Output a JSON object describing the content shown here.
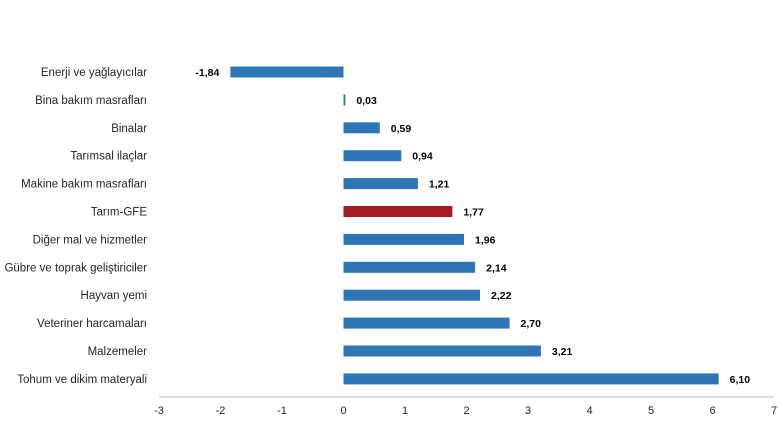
{
  "chart_data": {
    "type": "bar",
    "orientation": "horizontal",
    "categories": [
      "Enerji  ve yağlayıcılar",
      "Bina bakım masrafları",
      "Binalar",
      "Tarımsal ilaçlar",
      "Makine bakım masrafları",
      "Tarım-GFE",
      "Diğer mal ve hizmetler",
      "Gübre ve toprak geliştiriciler",
      "Hayvan yemi",
      "Veteriner harcamaları",
      "Malzemeler",
      "Tohum ve dikim materyali"
    ],
    "values": [
      -1.84,
      0.03,
      0.59,
      0.94,
      1.21,
      1.77,
      1.96,
      2.14,
      2.22,
      2.7,
      3.21,
      6.1
    ],
    "value_labels": [
      "-1,84",
      "0,03",
      "0,59",
      "0,94",
      "1,21",
      "1,77",
      "1,96",
      "2,14",
      "2,22",
      "2,70",
      "3,21",
      "6,10"
    ],
    "xlim": [
      -3,
      7
    ],
    "xticks": [
      -3,
      -2,
      -1,
      0,
      1,
      2,
      3,
      4,
      5,
      6,
      7
    ],
    "xtick_labels": [
      "-3",
      "-2",
      "-1",
      "0",
      "1",
      "2",
      "3",
      "4",
      "5",
      "6",
      "7"
    ],
    "grid": false,
    "colors": {
      "default": "#2E75B6",
      "highlight": "#A31A1F",
      "highlight_category": "Tarım-GFE",
      "axis": "#BFBFBF"
    }
  }
}
